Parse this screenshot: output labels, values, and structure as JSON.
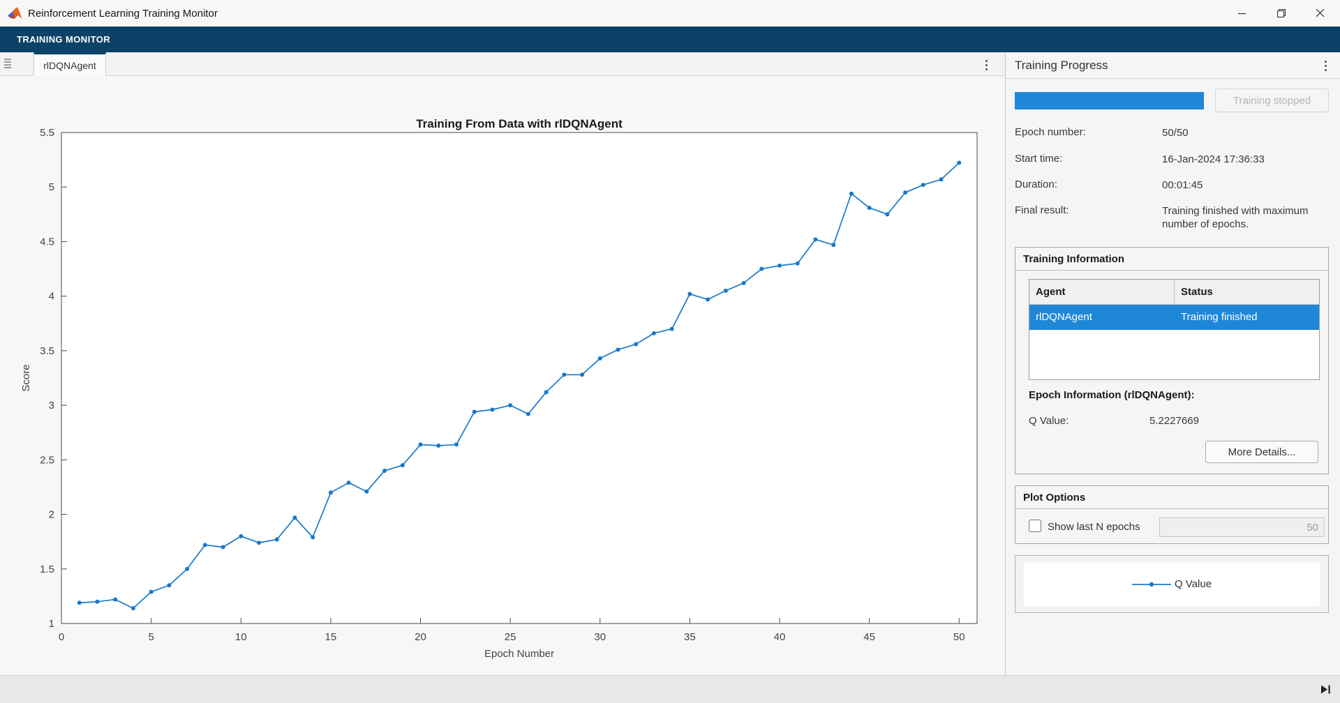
{
  "window": {
    "title": "Reinforcement Learning Training Monitor"
  },
  "ribbon": {
    "label": "TRAINING MONITOR"
  },
  "tabbar": {
    "active_tab": "rlDQNAgent"
  },
  "progress_panel": {
    "title": "Training Progress",
    "progress_percent": 100,
    "stop_button_label": "Training stopped",
    "rows": [
      {
        "label": "Epoch number:",
        "value": "50/50"
      },
      {
        "label": "Start time:",
        "value": "16-Jan-2024 17:36:33"
      },
      {
        "label": "Duration:",
        "value": "00:01:45"
      },
      {
        "label": "Final result:",
        "value": "Training finished with maximum number of epochs."
      }
    ],
    "training_information": {
      "title": "Training Information",
      "table": {
        "headers": [
          "Agent",
          "Status"
        ],
        "row": {
          "agent": "rlDQNAgent",
          "status": "Training finished",
          "selected": true
        }
      },
      "epoch_info_title": "Epoch Information (rlDQNAgent):",
      "q_value_label": "Q Value:",
      "q_value": "5.2227669",
      "more_details_button": "More Details..."
    },
    "plot_options": {
      "title": "Plot Options",
      "checkbox_label": "Show last N epochs",
      "checkbox_checked": false,
      "n_epochs_value": "50"
    },
    "legend": {
      "series_label": "Q Value"
    }
  },
  "colors": {
    "accent_blue": "#1e87d8",
    "ribbon_blue": "#0d4268",
    "chart_line": "#1878c8",
    "axis_text": "#424242"
  },
  "chart_data": {
    "type": "line",
    "title": "Training From Data with rlDQNAgent",
    "xlabel": "Epoch Number",
    "ylabel": "Score",
    "xlim": [
      0,
      51
    ],
    "ylim": [
      1,
      5.5
    ],
    "xticks": [
      0,
      5,
      10,
      15,
      20,
      25,
      30,
      35,
      40,
      45,
      50
    ],
    "yticks": [
      1,
      1.5,
      2,
      2.5,
      3,
      3.5,
      4,
      4.5,
      5,
      5.5
    ],
    "grid": false,
    "legend_position": "external-panel",
    "series": [
      {
        "name": "Q Value",
        "marker": "dot",
        "x": [
          1,
          2,
          3,
          4,
          5,
          6,
          7,
          8,
          9,
          10,
          11,
          12,
          13,
          14,
          15,
          16,
          17,
          18,
          19,
          20,
          21,
          22,
          23,
          24,
          25,
          26,
          27,
          28,
          29,
          30,
          31,
          32,
          33,
          34,
          35,
          36,
          37,
          38,
          39,
          40,
          41,
          42,
          43,
          44,
          45,
          46,
          47,
          48,
          49,
          50
        ],
        "y": [
          1.19,
          1.2,
          1.22,
          1.14,
          1.29,
          1.35,
          1.5,
          1.72,
          1.7,
          1.8,
          1.74,
          1.77,
          1.97,
          1.79,
          2.2,
          2.29,
          2.21,
          2.4,
          2.45,
          2.64,
          2.63,
          2.64,
          2.94,
          2.96,
          3.0,
          2.92,
          3.12,
          3.28,
          3.28,
          3.43,
          3.51,
          3.56,
          3.66,
          3.7,
          4.02,
          3.97,
          4.05,
          4.12,
          4.25,
          4.28,
          4.3,
          4.52,
          4.47,
          4.94,
          4.81,
          4.75,
          4.95,
          5.02,
          5.07,
          5.2228
        ]
      }
    ]
  }
}
